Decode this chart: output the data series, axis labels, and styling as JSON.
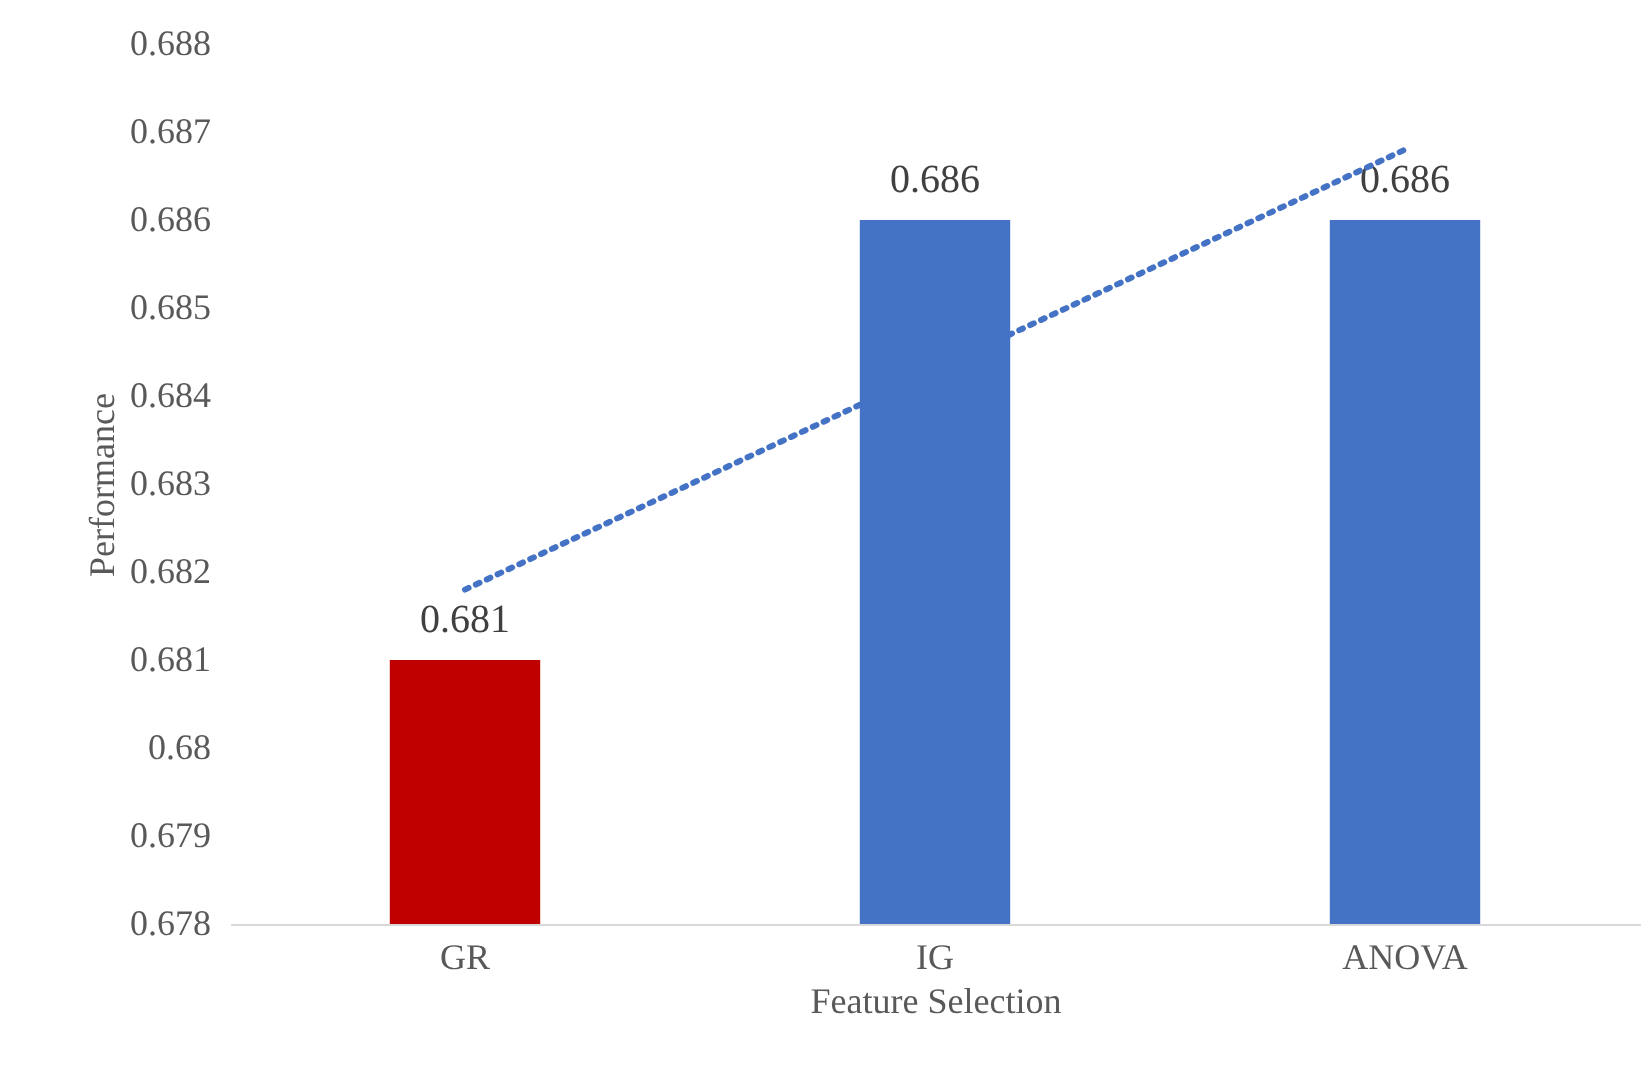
{
  "chart_data": {
    "type": "bar",
    "xlabel": "Feature Selection",
    "ylabel": "Performance",
    "categories": [
      "GR",
      "IG",
      "ANOVA"
    ],
    "series": [
      {
        "values": [
          0.681,
          0.686,
          0.686
        ],
        "colors": [
          "#c00000",
          "#4472c4",
          "#4472c4"
        ],
        "value_labels": [
          "0.681",
          "0.686",
          "0.686"
        ]
      },
      {
        "type": "line",
        "x": [
          "GR",
          "ANOVA"
        ],
        "values": [
          0.6818,
          0.6868
        ],
        "color": "#4472c4",
        "line_style": "dotted"
      }
    ],
    "ylim": [
      0.678,
      0.688
    ],
    "yticks": [
      0.678,
      0.679,
      0.68,
      0.681,
      0.682,
      0.683,
      0.684,
      0.685,
      0.686,
      0.687,
      0.688
    ]
  }
}
